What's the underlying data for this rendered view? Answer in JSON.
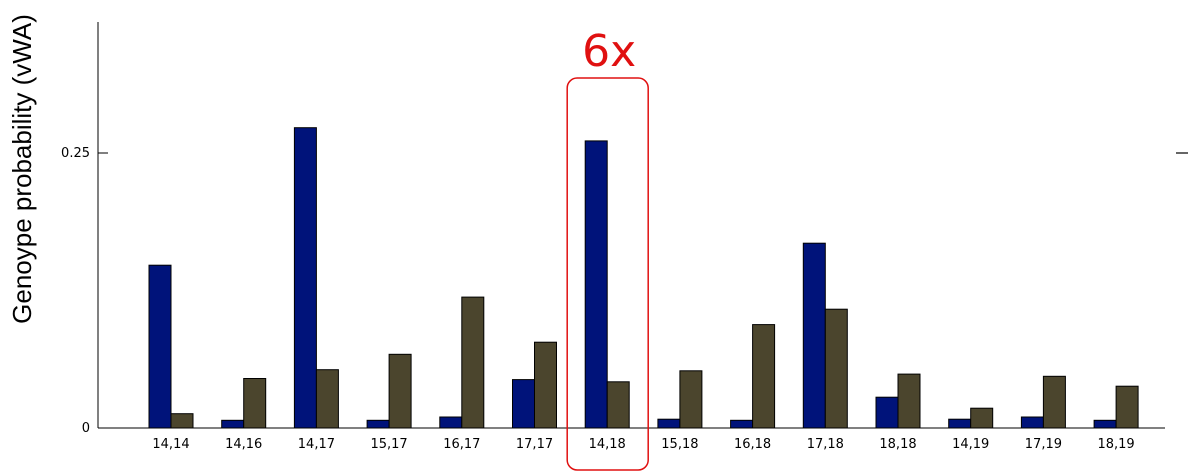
{
  "chart_data": {
    "type": "bar",
    "ylabel": "Genoype probability (vWA)",
    "xlabel": "",
    "title": "",
    "categories": [
      "14,14",
      "14,16",
      "14,17",
      "15,17",
      "16,17",
      "17,17",
      "14,18",
      "15,18",
      "16,18",
      "17,18",
      "18,18",
      "14,19",
      "17,19",
      "18,19"
    ],
    "series": [
      {
        "color": "#00137A",
        "values": [
          0.148,
          0.007,
          0.273,
          0.007,
          0.01,
          0.044,
          0.261,
          0.008,
          0.007,
          0.168,
          0.028,
          0.008,
          0.01,
          0.007
        ]
      },
      {
        "color": "#4B452D",
        "values": [
          0.013,
          0.045,
          0.053,
          0.067,
          0.119,
          0.078,
          0.042,
          0.052,
          0.094,
          0.108,
          0.049,
          0.018,
          0.047,
          0.038
        ]
      }
    ],
    "yticks": [
      {
        "value": 0,
        "label": "0"
      },
      {
        "value": 0.25,
        "label": "0.25"
      }
    ],
    "ylim": [
      0,
      0.37
    ],
    "highlight": {
      "category": "14,18",
      "label": "6x",
      "color": "#E01010"
    }
  }
}
